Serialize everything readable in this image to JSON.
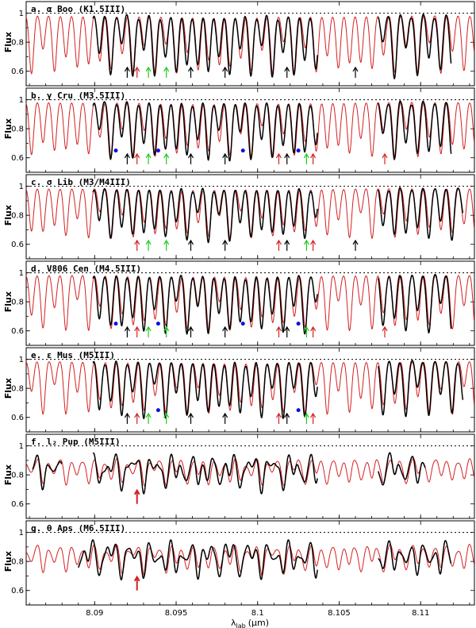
{
  "chart_data": {
    "type": "line",
    "x_range": [
      8.0858,
      8.1133
    ],
    "ylim": [
      0.5,
      1.08
    ],
    "x_ticks": [
      {
        "value": 8.09,
        "label": "8.09"
      },
      {
        "value": 8.095,
        "label": "8.095"
      },
      {
        "value": 8.1,
        "label": "8.1"
      },
      {
        "value": 8.105,
        "label": "8.105"
      },
      {
        "value": 8.11,
        "label": "8.11"
      }
    ],
    "y_ticks": [
      {
        "value": 1.0,
        "label": "1"
      },
      {
        "value": 0.8,
        "label": "0.8"
      },
      {
        "value": 0.6,
        "label": "0.6"
      }
    ],
    "y_label": "Flux",
    "x_label_main": "λ",
    "x_label_sub": "lab",
    "x_label_unit": "(μm)",
    "reference_level": 1.0,
    "colors": {
      "observed": "#000000",
      "model": "#d42020",
      "arrow_black": "#000000",
      "arrow_red": "#d42020",
      "arrow_green": "#1ecb1e",
      "dot_blue": "#1010e0"
    },
    "panels": [
      {
        "title": "a. α Boo (K1.5III)",
        "obs_segments": [
          [
            8.0899,
            8.1037
          ],
          [
            8.1074,
            8.1119
          ]
        ],
        "arrows": [
          {
            "x": 8.092,
            "c": "black"
          },
          {
            "x": 8.0926,
            "c": "red"
          },
          {
            "x": 8.0933,
            "c": "green"
          },
          {
            "x": 8.0944,
            "c": "green"
          },
          {
            "x": 8.0959,
            "c": "black"
          },
          {
            "x": 8.098,
            "c": "black"
          },
          {
            "x": 8.1018,
            "c": "black"
          },
          {
            "x": 8.106,
            "c": "black"
          }
        ],
        "dots": []
      },
      {
        "title": "b. γ Cru (M3.5III)",
        "obs_segments": [
          [
            8.0899,
            8.1037
          ],
          [
            8.1074,
            8.1119
          ]
        ],
        "arrows": [
          {
            "x": 8.092,
            "c": "black"
          },
          {
            "x": 8.0926,
            "c": "red"
          },
          {
            "x": 8.0933,
            "c": "green"
          },
          {
            "x": 8.0944,
            "c": "green"
          },
          {
            "x": 8.0959,
            "c": "black"
          },
          {
            "x": 8.098,
            "c": "black"
          },
          {
            "x": 8.1013,
            "c": "red"
          },
          {
            "x": 8.1018,
            "c": "black"
          },
          {
            "x": 8.103,
            "c": "green"
          },
          {
            "x": 8.1034,
            "c": "red"
          },
          {
            "x": 8.1078,
            "c": "red"
          }
        ],
        "dots": [
          8.0913,
          8.0939,
          8.0991,
          8.1025
        ]
      },
      {
        "title": "c. σ Lib (M3/M4III)",
        "obs_segments": [
          [
            8.0899,
            8.1037
          ],
          [
            8.1074,
            8.1126
          ]
        ],
        "arrows": [
          {
            "x": 8.0926,
            "c": "red"
          },
          {
            "x": 8.0933,
            "c": "green"
          },
          {
            "x": 8.0944,
            "c": "green"
          },
          {
            "x": 8.0959,
            "c": "black"
          },
          {
            "x": 8.098,
            "c": "black"
          },
          {
            "x": 8.1013,
            "c": "red"
          },
          {
            "x": 8.1018,
            "c": "black"
          },
          {
            "x": 8.103,
            "c": "green"
          },
          {
            "x": 8.1034,
            "c": "red"
          },
          {
            "x": 8.106,
            "c": "black"
          }
        ],
        "dots": []
      },
      {
        "title": "d. V806 Cen (M4.5III)",
        "obs_segments": [
          [
            8.0899,
            8.1037
          ],
          [
            8.1074,
            8.1119
          ]
        ],
        "arrows": [
          {
            "x": 8.092,
            "c": "black"
          },
          {
            "x": 8.0926,
            "c": "red"
          },
          {
            "x": 8.0933,
            "c": "green"
          },
          {
            "x": 8.0944,
            "c": "green"
          },
          {
            "x": 8.0959,
            "c": "black"
          },
          {
            "x": 8.098,
            "c": "black"
          },
          {
            "x": 8.1013,
            "c": "red"
          },
          {
            "x": 8.1018,
            "c": "black"
          },
          {
            "x": 8.103,
            "c": "green"
          },
          {
            "x": 8.1034,
            "c": "red"
          },
          {
            "x": 8.1078,
            "c": "red"
          }
        ],
        "dots": [
          8.0913,
          8.0939,
          8.0991,
          8.1025
        ]
      },
      {
        "title": "e. ε Mus (M5III)",
        "obs_segments": [
          [
            8.0899,
            8.1037
          ],
          [
            8.1074,
            8.1126
          ]
        ],
        "arrows": [
          {
            "x": 8.092,
            "c": "black"
          },
          {
            "x": 8.0926,
            "c": "red"
          },
          {
            "x": 8.0933,
            "c": "green"
          },
          {
            "x": 8.0944,
            "c": "green"
          },
          {
            "x": 8.0959,
            "c": "black"
          },
          {
            "x": 8.098,
            "c": "black"
          },
          {
            "x": 8.1013,
            "c": "red"
          },
          {
            "x": 8.1018,
            "c": "black"
          },
          {
            "x": 8.103,
            "c": "green"
          },
          {
            "x": 8.1034,
            "c": "red"
          }
        ],
        "dots": [
          8.0939,
          8.1025
        ]
      },
      {
        "title": "f. l₂ Pup (M5III)",
        "obs_segments": [
          [
            8.0862,
            8.088
          ],
          [
            8.0899,
            8.1037
          ],
          [
            8.1074,
            8.1103
          ]
        ],
        "arrows": [
          {
            "x": 8.0926,
            "c": "red",
            "big": true
          }
        ],
        "dots": []
      },
      {
        "title": "g. θ Aps (M6.5III)",
        "obs_segments": [
          [
            8.089,
            8.1037
          ],
          [
            8.1074,
            8.1119
          ]
        ],
        "arrows": [
          {
            "x": 8.0926,
            "c": "red",
            "big": true
          }
        ],
        "dots": []
      }
    ]
  }
}
